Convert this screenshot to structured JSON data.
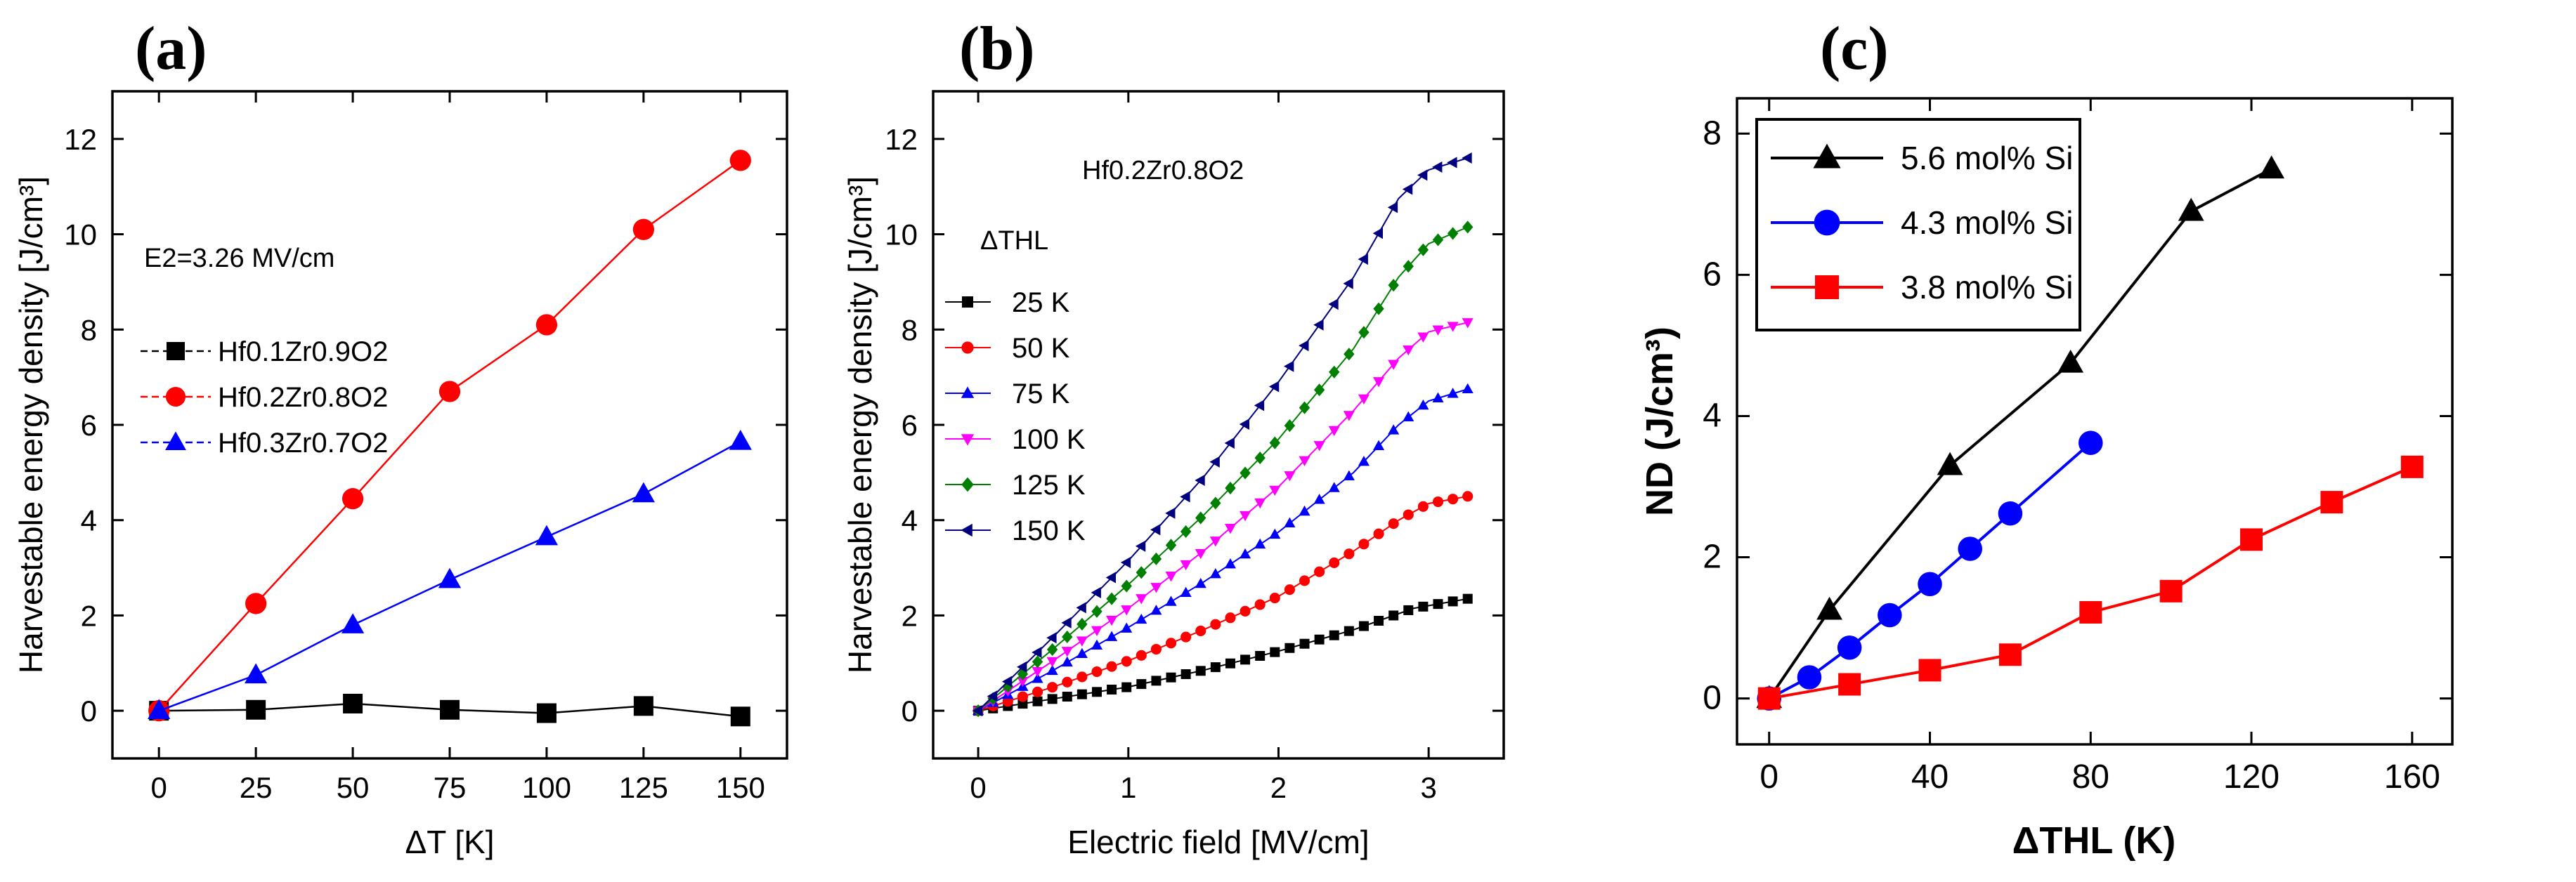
{
  "chart_data": [
    {
      "id": "a",
      "type": "line",
      "panel_label": "(a)",
      "xlabel": "ΔT [K]",
      "ylabel": "Harvestable energy density [J/cm³]",
      "xlim": [
        -12,
        162
      ],
      "ylim": [
        -1.0,
        13.0
      ],
      "xticks": [
        0,
        25,
        50,
        75,
        100,
        125,
        150
      ],
      "yticks": [
        0,
        2,
        4,
        6,
        8,
        10,
        12
      ],
      "annotation": "E2=3.26 MV/cm",
      "x": [
        0,
        25,
        50,
        75,
        100,
        125,
        150
      ],
      "series": [
        {
          "name": "Hf0.1Zr0.9O2",
          "color": "#000000",
          "marker": "square",
          "values": [
            0,
            0.02,
            0.15,
            0.02,
            -0.05,
            0.1,
            -0.12
          ]
        },
        {
          "name": "Hf0.2Zr0.8O2",
          "color": "#ff0000",
          "marker": "circle",
          "values": [
            0,
            2.25,
            4.45,
            6.7,
            8.1,
            10.1,
            11.55
          ]
        },
        {
          "name": "Hf0.3Zr0.7O2",
          "color": "#0000ff",
          "marker": "triangle",
          "values": [
            0,
            0.75,
            1.8,
            2.75,
            3.65,
            4.55,
            5.65
          ]
        }
      ]
    },
    {
      "id": "b",
      "type": "line",
      "panel_label": "(b)",
      "xlabel": "Electric field [MV/cm]",
      "ylabel": "Harvestable energy density [J/cm³]",
      "xlim": [
        -0.3,
        3.5
      ],
      "ylim": [
        -1.0,
        13.0
      ],
      "xticks": [
        0,
        1,
        2,
        3
      ],
      "yticks": [
        0,
        2,
        4,
        6,
        8,
        10,
        12
      ],
      "composition": "Hf0.2Zr0.8O2",
      "legend_title": "ΔTHL",
      "series": [
        {
          "name": "25 K",
          "color": "#000000",
          "marker": "square",
          "points": [
            [
              0,
              0
            ],
            [
              0.5,
              0.25
            ],
            [
              1,
              0.5
            ],
            [
              1.5,
              0.85
            ],
            [
              2,
              1.25
            ],
            [
              2.5,
              1.7
            ],
            [
              2.9,
              2.15
            ],
            [
              3.26,
              2.35
            ]
          ]
        },
        {
          "name": "50 K",
          "color": "#ff0000",
          "marker": "circle",
          "points": [
            [
              0,
              0
            ],
            [
              0.5,
              0.5
            ],
            [
              1,
              1.05
            ],
            [
              1.5,
              1.7
            ],
            [
              2,
              2.4
            ],
            [
              2.5,
              3.35
            ],
            [
              2.8,
              4.0
            ],
            [
              3.0,
              4.35
            ],
            [
              3.26,
              4.5
            ]
          ]
        },
        {
          "name": "75 K",
          "color": "#0000ff",
          "marker": "triangle-up",
          "points": [
            [
              0,
              0
            ],
            [
              0.5,
              0.85
            ],
            [
              1,
              1.75
            ],
            [
              1.5,
              2.7
            ],
            [
              2,
              3.75
            ],
            [
              2.5,
              5.0
            ],
            [
              2.8,
              6.0
            ],
            [
              3.0,
              6.5
            ],
            [
              3.26,
              6.75
            ]
          ]
        },
        {
          "name": "100 K",
          "color": "#ff00ff",
          "marker": "triangle-down",
          "points": [
            [
              0,
              0
            ],
            [
              0.5,
              1.05
            ],
            [
              1,
              2.15
            ],
            [
              1.5,
              3.35
            ],
            [
              2,
              4.7
            ],
            [
              2.5,
              6.3
            ],
            [
              2.8,
              7.4
            ],
            [
              3.0,
              7.95
            ],
            [
              3.26,
              8.15
            ]
          ]
        },
        {
          "name": "125 K",
          "color": "#008000",
          "marker": "diamond",
          "points": [
            [
              0,
              0
            ],
            [
              0.5,
              1.3
            ],
            [
              1,
              2.65
            ],
            [
              1.5,
              4.1
            ],
            [
              2,
              5.7
            ],
            [
              2.5,
              7.6
            ],
            [
              2.8,
              9.1
            ],
            [
              3.0,
              9.8
            ],
            [
              3.26,
              10.15
            ]
          ]
        },
        {
          "name": "150 K",
          "color": "#000080",
          "marker": "triangle-left",
          "points": [
            [
              0,
              0
            ],
            [
              0.5,
              1.55
            ],
            [
              1,
              3.15
            ],
            [
              1.5,
              4.9
            ],
            [
              2,
              6.9
            ],
            [
              2.5,
              9.1
            ],
            [
              2.8,
              10.75
            ],
            [
              3.0,
              11.35
            ],
            [
              3.26,
              11.6
            ]
          ]
        }
      ]
    },
    {
      "id": "c",
      "type": "line",
      "panel_label": "(c)",
      "xlabel": "ΔTHL (K)",
      "ylabel": "ND (J/cm³)",
      "xlim": [
        -8,
        170
      ],
      "ylim": [
        -0.65,
        8.5
      ],
      "xticks": [
        0,
        40,
        80,
        120,
        160
      ],
      "yticks": [
        0,
        2,
        4,
        6,
        8
      ],
      "series": [
        {
          "name": "5.6 mol% Si",
          "color": "#000000",
          "marker": "triangle",
          "points": [
            [
              0,
              0
            ],
            [
              15,
              1.25
            ],
            [
              45,
              3.3
            ],
            [
              75,
              4.75
            ],
            [
              105,
              6.9
            ],
            [
              125,
              7.5
            ]
          ]
        },
        {
          "name": "4.3 mol% Si",
          "color": "#0000ff",
          "marker": "circle",
          "points": [
            [
              0,
              0
            ],
            [
              10,
              0.3
            ],
            [
              20,
              0.72
            ],
            [
              30,
              1.18
            ],
            [
              40,
              1.62
            ],
            [
              50,
              2.12
            ],
            [
              60,
              2.62
            ],
            [
              80,
              3.62
            ]
          ]
        },
        {
          "name": "3.8 mol% Si",
          "color": "#ff0000",
          "marker": "square",
          "points": [
            [
              0,
              0
            ],
            [
              20,
              0.2
            ],
            [
              40,
              0.4
            ],
            [
              60,
              0.62
            ],
            [
              80,
              1.22
            ],
            [
              100,
              1.52
            ],
            [
              120,
              2.25
            ],
            [
              140,
              2.78
            ],
            [
              160,
              3.28
            ]
          ]
        }
      ]
    }
  ]
}
